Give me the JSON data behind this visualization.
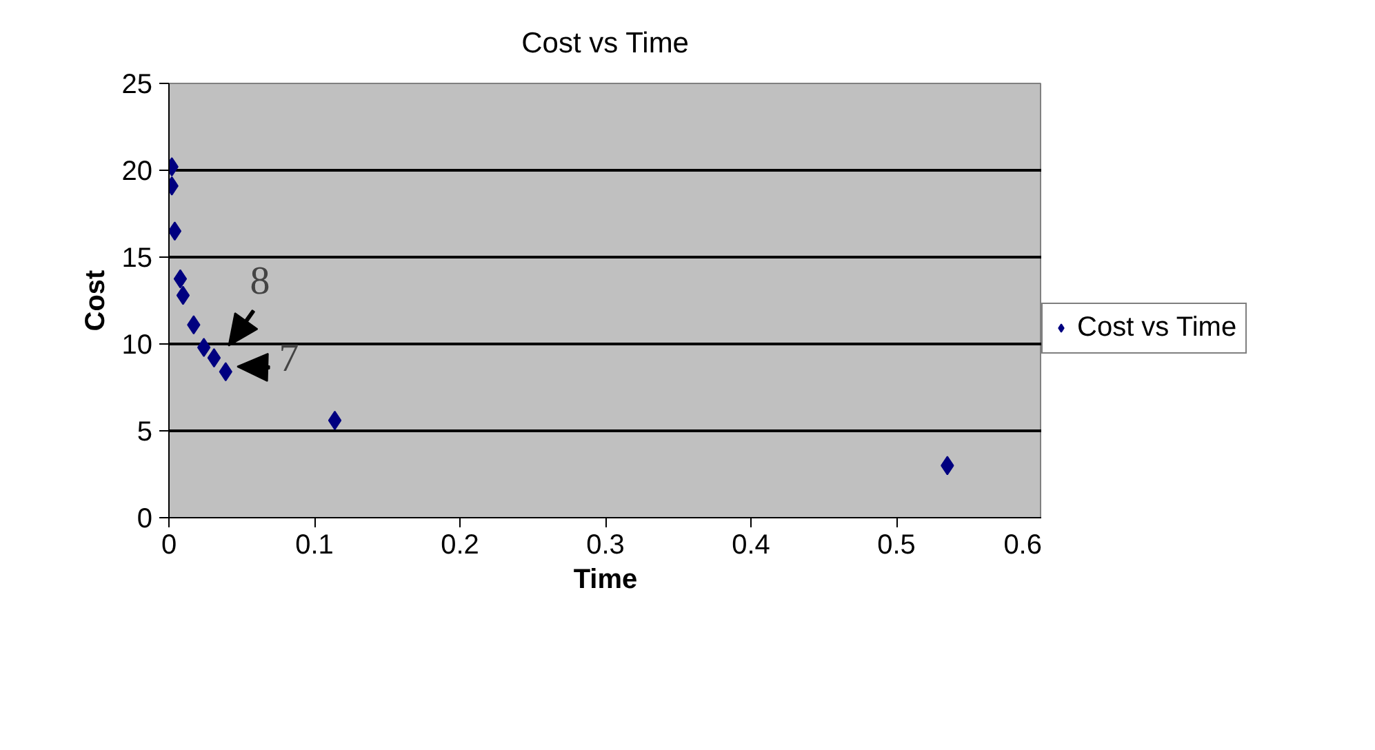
{
  "chart_data": {
    "type": "scatter",
    "title": "Cost vs Time",
    "xlabel": "Time",
    "ylabel": "Cost",
    "x": [
      0.002,
      0.002,
      0.004,
      0.0078,
      0.0097,
      0.017,
      0.024,
      0.031,
      0.039,
      0.114,
      0.535
    ],
    "series": [
      {
        "name": "Cost vs Time",
        "color": "#000080",
        "values": [
          20.2,
          19.1,
          16.5,
          13.75,
          12.8,
          11.1,
          9.8,
          9.2,
          8.4,
          5.6,
          3.0
        ]
      }
    ],
    "xlim": [
      0,
      0.6
    ],
    "xticks": [
      0,
      0.1,
      0.2,
      0.3,
      0.4,
      0.5,
      0.6
    ],
    "ylim": [
      0,
      25
    ],
    "yticks": [
      0,
      5,
      10,
      15,
      20,
      25
    ],
    "grid": "y",
    "legend": "right",
    "marker": "diamond",
    "annotations": [
      "8",
      "7"
    ]
  }
}
